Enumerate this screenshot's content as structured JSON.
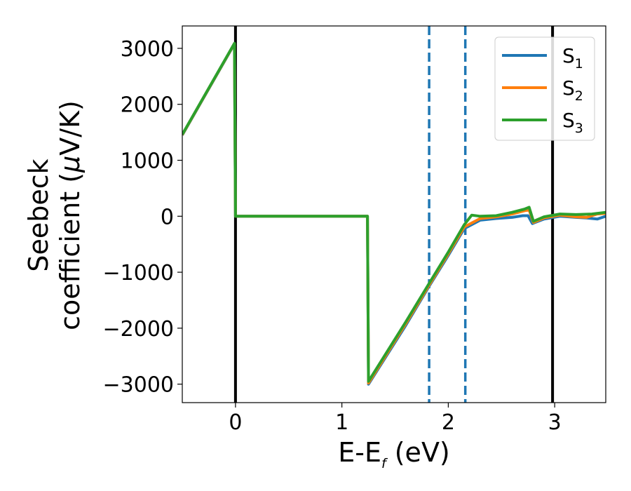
{
  "chart_data": {
    "type": "line",
    "xlabel_main": "E-E",
    "xlabel_sub": "f",
    "xlabel_unit": " (eV)",
    "ylabel_line1": "Seebeck",
    "ylabel_line2_text": "coefficient  (",
    "ylabel_mu": "μ",
    "ylabel_line2_unit": "V/K)",
    "xlim": [
      -0.5,
      3.48
    ],
    "ylim": [
      -3330,
      3400
    ],
    "xticks": [
      0,
      1,
      2,
      3
    ],
    "xtick_labels": [
      "0",
      "1",
      "2",
      "3"
    ],
    "yticks": [
      3000,
      2000,
      1000,
      0,
      -1000,
      -2000,
      -3000
    ],
    "ytick_labels": [
      "3000",
      "2000",
      "1000",
      "0",
      "−1000",
      "−2000",
      "−3000"
    ],
    "vlines_solid": [
      0,
      2.98
    ],
    "vlines_dashed": [
      1.82,
      2.16
    ],
    "vline_solid_color": "#000000",
    "vline_dashed_color": "#1f77b4",
    "legend_position": "top-right",
    "grid": false,
    "series": [
      {
        "name": "S",
        "sub": "1",
        "color": "#1f77b4",
        "points": [
          [
            -0.5,
            1450
          ],
          [
            -0.01,
            3080
          ],
          [
            0,
            0
          ],
          [
            1.24,
            0
          ],
          [
            1.25,
            -3000
          ],
          [
            1.6,
            -1950
          ],
          [
            1.82,
            -1250
          ],
          [
            2.0,
            -700
          ],
          [
            2.15,
            -220
          ],
          [
            2.3,
            -70
          ],
          [
            2.45,
            -40
          ],
          [
            2.6,
            -20
          ],
          [
            2.7,
            10
          ],
          [
            2.75,
            10
          ],
          [
            2.79,
            -130
          ],
          [
            2.9,
            -50
          ],
          [
            3.05,
            0
          ],
          [
            3.2,
            -20
          ],
          [
            3.3,
            -30
          ],
          [
            3.4,
            -50
          ],
          [
            3.48,
            0
          ]
        ]
      },
      {
        "name": "S",
        "sub": "2",
        "color": "#ff7f0e",
        "points": [
          [
            -0.5,
            1455
          ],
          [
            -0.01,
            3085
          ],
          [
            0,
            0
          ],
          [
            1.24,
            0
          ],
          [
            1.25,
            -2980
          ],
          [
            1.6,
            -1920
          ],
          [
            1.82,
            -1230
          ],
          [
            2.0,
            -670
          ],
          [
            2.15,
            -190
          ],
          [
            2.3,
            -40
          ],
          [
            2.45,
            -10
          ],
          [
            2.6,
            40
          ],
          [
            2.72,
            100
          ],
          [
            2.76,
            110
          ],
          [
            2.8,
            -110
          ],
          [
            2.9,
            -30
          ],
          [
            3.05,
            20
          ],
          [
            3.2,
            -10
          ],
          [
            3.3,
            -20
          ],
          [
            3.4,
            40
          ],
          [
            3.48,
            50
          ]
        ]
      },
      {
        "name": "S",
        "sub": "3",
        "color": "#2ca02c",
        "points": [
          [
            -0.5,
            1460
          ],
          [
            -0.01,
            3090
          ],
          [
            0,
            0
          ],
          [
            1.24,
            0
          ],
          [
            1.25,
            -2950
          ],
          [
            1.6,
            -1890
          ],
          [
            1.82,
            -1200
          ],
          [
            2.0,
            -640
          ],
          [
            2.15,
            -150
          ],
          [
            2.22,
            20
          ],
          [
            2.3,
            0
          ],
          [
            2.45,
            10
          ],
          [
            2.6,
            70
          ],
          [
            2.72,
            130
          ],
          [
            2.76,
            160
          ],
          [
            2.8,
            -90
          ],
          [
            2.9,
            -10
          ],
          [
            3.05,
            40
          ],
          [
            3.2,
            30
          ],
          [
            3.35,
            40
          ],
          [
            3.48,
            70
          ]
        ]
      }
    ]
  }
}
